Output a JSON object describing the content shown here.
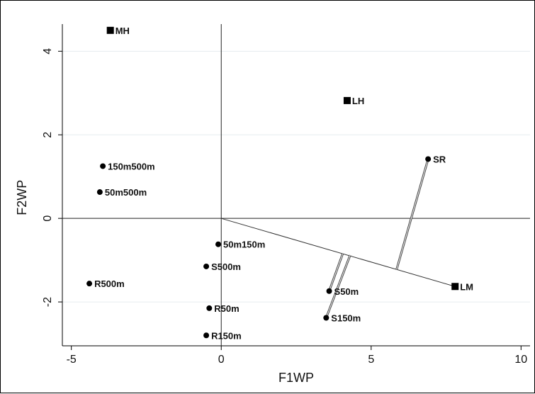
{
  "chart_data": {
    "type": "scatter",
    "title": "",
    "xlabel": "F1WP",
    "ylabel": "F2WP",
    "xlim": [
      -5.3,
      10.3
    ],
    "ylim": [
      -3.05,
      4.65
    ],
    "xticks": [
      -5,
      0,
      5,
      10
    ],
    "yticks": [
      -2,
      0,
      2,
      4
    ],
    "grid": "horizontal",
    "points": [
      {
        "label": "MH",
        "x": -3.7,
        "y": 4.5,
        "marker": "square"
      },
      {
        "label": "LH",
        "x": 4.2,
        "y": 2.82,
        "marker": "square"
      },
      {
        "label": "LM",
        "x": 7.8,
        "y": -1.63,
        "marker": "square"
      },
      {
        "label": "150m500m",
        "x": -3.95,
        "y": 1.25,
        "marker": "circle"
      },
      {
        "label": "50m500m",
        "x": -4.05,
        "y": 0.63,
        "marker": "circle"
      },
      {
        "label": "SR",
        "x": 6.9,
        "y": 1.42,
        "marker": "circle"
      },
      {
        "label": "50m150m",
        "x": -0.1,
        "y": -0.62,
        "marker": "circle"
      },
      {
        "label": "S500m",
        "x": -0.5,
        "y": -1.15,
        "marker": "circle"
      },
      {
        "label": "R500m",
        "x": -4.4,
        "y": -1.56,
        "marker": "circle"
      },
      {
        "label": "S50m",
        "x": 3.6,
        "y": -1.74,
        "marker": "circle"
      },
      {
        "label": "R50m",
        "x": -0.4,
        "y": -2.15,
        "marker": "circle"
      },
      {
        "label": "S150m",
        "x": 3.5,
        "y": -2.38,
        "marker": "circle"
      },
      {
        "label": "R150m",
        "x": -0.5,
        "y": -2.8,
        "marker": "circle"
      }
    ],
    "vector": {
      "from": [
        0,
        0
      ],
      "to": [
        7.8,
        -1.63
      ]
    },
    "projections": [
      {
        "from": [
          6.9,
          1.42
        ],
        "to": [
          5.85,
          -1.22
        ]
      },
      {
        "from": [
          3.6,
          -1.74
        ],
        "to": [
          4.05,
          -0.85
        ]
      },
      {
        "from": [
          3.5,
          -2.38
        ],
        "to": [
          4.3,
          -0.88
        ]
      }
    ]
  }
}
